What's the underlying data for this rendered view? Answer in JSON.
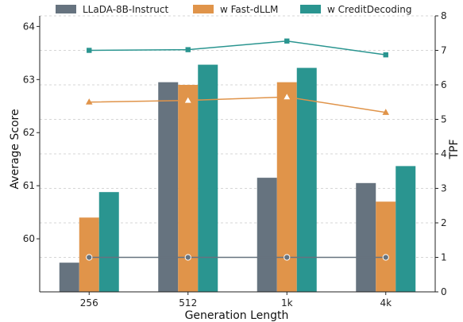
{
  "chart_data": {
    "type": "bar",
    "xlabel": "Generation Length",
    "ylabel": "Average Score",
    "y2label": "TPF",
    "categories": [
      "256",
      "512",
      "1k",
      "4k"
    ],
    "ylim": [
      59.0,
      64.2
    ],
    "y2lim": [
      0,
      8
    ],
    "yticks": [
      60,
      61,
      62,
      63,
      64
    ],
    "y2ticks": [
      0,
      1,
      2,
      3,
      4,
      5,
      6,
      7,
      8
    ],
    "grid": true,
    "legend_position": "top",
    "series": [
      {
        "name": "LLaDA-8B-Instruct",
        "color": "#66737f",
        "values": [
          59.55,
          62.95,
          61.15,
          61.05
        ],
        "tpf": [
          1.0,
          1.0,
          1.0,
          1.0
        ],
        "tpf_marker": "circle"
      },
      {
        "name": "w Fast-dLLM",
        "color": "#e0944a",
        "values": [
          60.4,
          62.9,
          62.95,
          60.7
        ],
        "tpf": [
          5.5,
          5.55,
          5.65,
          5.2
        ],
        "tpf_marker": "triangle"
      },
      {
        "name": "w CreditDecoding",
        "color": "#2a9590",
        "values": [
          60.88,
          63.28,
          63.22,
          61.37
        ],
        "tpf": [
          7.0,
          7.02,
          7.27,
          6.87
        ],
        "tpf_marker": "square"
      }
    ]
  }
}
